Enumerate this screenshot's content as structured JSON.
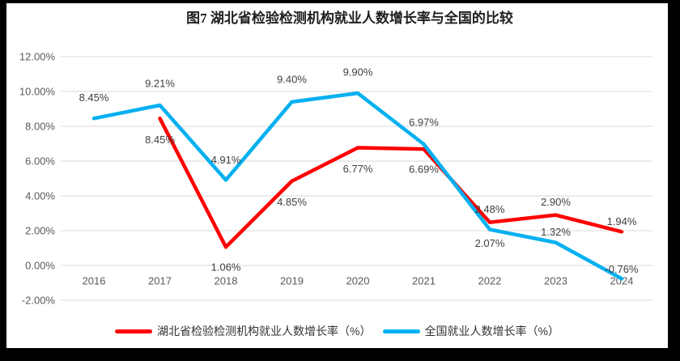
{
  "chart_data": {
    "type": "line",
    "title": "图7 湖北省检验检测机构就业人数增长率与全国的比较",
    "categories": [
      "2016",
      "2017",
      "2018",
      "2019",
      "2020",
      "2021",
      "2022",
      "2023",
      "2024"
    ],
    "series": [
      {
        "id": "hubei",
        "name": "湖北省检验检测机构就业人数增长率（%）",
        "color": "#FF0000",
        "values": [
          null,
          8.45,
          1.06,
          4.85,
          6.77,
          6.69,
          2.48,
          2.9,
          1.94
        ],
        "label_dy": [
          0,
          26,
          25,
          26,
          26,
          25,
          -16,
          -16,
          -13
        ]
      },
      {
        "id": "national",
        "name": "全国就业人数增长率（%）",
        "color": "#00B0F0",
        "values": [
          8.45,
          9.21,
          4.91,
          9.4,
          9.9,
          6.97,
          2.07,
          1.32,
          -0.76
        ],
        "label_dy": [
          -26,
          -27,
          -25,
          -28,
          -26,
          -27,
          17,
          -13,
          -12
        ]
      }
    ],
    "ylim": [
      -2,
      12
    ],
    "ytick_step": 2,
    "ytick_labels": [
      "12.00%",
      "10.00%",
      "8.00%",
      "6.00%",
      "4.00%",
      "2.00%",
      "0.00%",
      "-2.00%"
    ],
    "value_label_format": "0.00%",
    "grid": true,
    "legend_position": "bottom",
    "colors": {
      "grid": "#D9D9D9",
      "axis_text": "#595959",
      "label_text": "#404040",
      "frame_background": "#000000",
      "plot_background": "#FFFFFF"
    }
  }
}
